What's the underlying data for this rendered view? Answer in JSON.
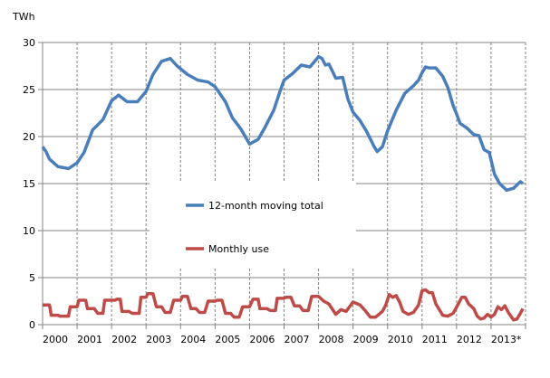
{
  "chart_data": {
    "type": "line",
    "ylabel": "TWh",
    "xlim": [
      2000,
      2014
    ],
    "ylim": [
      0,
      30
    ],
    "yticks": [
      0,
      5,
      10,
      15,
      20,
      25,
      30
    ],
    "xtick_labels": [
      "2000",
      "2001",
      "2002",
      "2003",
      "2004",
      "2005",
      "2006",
      "2007",
      "2008",
      "2009",
      "2010",
      "2011",
      "2012",
      "2013*"
    ],
    "grid": {
      "horizontal": "solid",
      "vertical": "dashed"
    },
    "legend_placement": "center-left",
    "series": [
      {
        "name": "12-month moving total",
        "color": "#4a7ebb",
        "points": [
          [
            2000.0,
            18.9
          ],
          [
            2000.1,
            18.4
          ],
          [
            2000.2,
            17.6
          ],
          [
            2000.45,
            16.8
          ],
          [
            2000.75,
            16.6
          ],
          [
            2001.0,
            17.2
          ],
          [
            2001.2,
            18.3
          ],
          [
            2001.45,
            20.7
          ],
          [
            2001.75,
            21.8
          ],
          [
            2002.0,
            23.8
          ],
          [
            2002.2,
            24.4
          ],
          [
            2002.45,
            23.7
          ],
          [
            2002.75,
            23.7
          ],
          [
            2003.0,
            24.8
          ],
          [
            2003.2,
            26.6
          ],
          [
            2003.45,
            28.0
          ],
          [
            2003.7,
            28.3
          ],
          [
            2003.9,
            27.5
          ],
          [
            2004.2,
            26.6
          ],
          [
            2004.5,
            26.0
          ],
          [
            2004.8,
            25.8
          ],
          [
            2005.0,
            25.3
          ],
          [
            2005.3,
            23.7
          ],
          [
            2005.5,
            22.0
          ],
          [
            2005.75,
            20.8
          ],
          [
            2006.0,
            19.2
          ],
          [
            2006.25,
            19.7
          ],
          [
            2006.45,
            21.0
          ],
          [
            2006.7,
            22.8
          ],
          [
            2006.9,
            25.0
          ],
          [
            2007.0,
            26.0
          ],
          [
            2007.25,
            26.7
          ],
          [
            2007.5,
            27.6
          ],
          [
            2007.75,
            27.4
          ],
          [
            2008.0,
            28.5
          ],
          [
            2008.1,
            28.3
          ],
          [
            2008.2,
            27.6
          ],
          [
            2008.3,
            27.7
          ],
          [
            2008.5,
            26.2
          ],
          [
            2008.7,
            26.3
          ],
          [
            2008.85,
            24.0
          ],
          [
            2009.0,
            22.6
          ],
          [
            2009.2,
            21.7
          ],
          [
            2009.4,
            20.5
          ],
          [
            2009.6,
            19.0
          ],
          [
            2009.7,
            18.4
          ],
          [
            2009.85,
            18.9
          ],
          [
            2010.0,
            20.6
          ],
          [
            2010.25,
            22.8
          ],
          [
            2010.5,
            24.6
          ],
          [
            2010.75,
            25.4
          ],
          [
            2010.9,
            26.0
          ],
          [
            2011.0,
            26.8
          ],
          [
            2011.1,
            27.4
          ],
          [
            2011.2,
            27.3
          ],
          [
            2011.4,
            27.3
          ],
          [
            2011.6,
            26.4
          ],
          [
            2011.75,
            25.2
          ],
          [
            2011.9,
            23.3
          ],
          [
            2012.0,
            22.4
          ],
          [
            2012.1,
            21.4
          ],
          [
            2012.3,
            20.9
          ],
          [
            2012.5,
            20.2
          ],
          [
            2012.65,
            20.1
          ],
          [
            2012.8,
            18.6
          ],
          [
            2012.95,
            18.3
          ],
          [
            2013.1,
            16.0
          ],
          [
            2013.25,
            15.0
          ],
          [
            2013.45,
            14.3
          ],
          [
            2013.65,
            14.5
          ],
          [
            2013.85,
            15.2
          ],
          [
            2013.92,
            15.0
          ]
        ]
      },
      {
        "name": "Monthly use",
        "color": "#be4b48",
        "points": [
          [
            2000.0,
            2.1
          ],
          [
            2000.2,
            2.1
          ],
          [
            2000.25,
            1.0
          ],
          [
            2000.45,
            1.0
          ],
          [
            2000.5,
            0.9
          ],
          [
            2000.75,
            0.9
          ],
          [
            2000.8,
            1.9
          ],
          [
            2001.0,
            1.9
          ],
          [
            2001.05,
            2.6
          ],
          [
            2001.25,
            2.6
          ],
          [
            2001.3,
            1.7
          ],
          [
            2001.5,
            1.7
          ],
          [
            2001.6,
            1.2
          ],
          [
            2001.75,
            1.2
          ],
          [
            2001.8,
            2.6
          ],
          [
            2002.1,
            2.6
          ],
          [
            2002.15,
            2.7
          ],
          [
            2002.25,
            2.7
          ],
          [
            2002.3,
            1.4
          ],
          [
            2002.5,
            1.4
          ],
          [
            2002.6,
            1.2
          ],
          [
            2002.8,
            1.2
          ],
          [
            2002.85,
            2.9
          ],
          [
            2003.0,
            2.9
          ],
          [
            2003.05,
            3.3
          ],
          [
            2003.2,
            3.3
          ],
          [
            2003.3,
            1.9
          ],
          [
            2003.45,
            1.9
          ],
          [
            2003.55,
            1.3
          ],
          [
            2003.7,
            1.3
          ],
          [
            2003.8,
            2.6
          ],
          [
            2004.0,
            2.6
          ],
          [
            2004.05,
            3.0
          ],
          [
            2004.2,
            3.0
          ],
          [
            2004.3,
            1.7
          ],
          [
            2004.45,
            1.7
          ],
          [
            2004.55,
            1.3
          ],
          [
            2004.7,
            1.3
          ],
          [
            2004.8,
            2.5
          ],
          [
            2005.0,
            2.5
          ],
          [
            2005.05,
            2.6
          ],
          [
            2005.2,
            2.6
          ],
          [
            2005.3,
            1.2
          ],
          [
            2005.45,
            1.2
          ],
          [
            2005.55,
            0.8
          ],
          [
            2005.7,
            0.8
          ],
          [
            2005.8,
            1.9
          ],
          [
            2006.0,
            1.9
          ],
          [
            2006.1,
            2.7
          ],
          [
            2006.25,
            2.7
          ],
          [
            2006.3,
            1.7
          ],
          [
            2006.5,
            1.7
          ],
          [
            2006.6,
            1.5
          ],
          [
            2006.75,
            1.5
          ],
          [
            2006.8,
            2.8
          ],
          [
            2007.0,
            2.8
          ],
          [
            2007.05,
            2.9
          ],
          [
            2007.2,
            2.9
          ],
          [
            2007.3,
            2.0
          ],
          [
            2007.45,
            2.0
          ],
          [
            2007.55,
            1.5
          ],
          [
            2007.7,
            1.5
          ],
          [
            2007.8,
            3.0
          ],
          [
            2008.0,
            3.0
          ],
          [
            2008.15,
            2.5
          ],
          [
            2008.3,
            2.2
          ],
          [
            2008.5,
            1.1
          ],
          [
            2008.65,
            1.6
          ],
          [
            2008.8,
            1.4
          ],
          [
            2009.0,
            2.4
          ],
          [
            2009.2,
            2.1
          ],
          [
            2009.35,
            1.5
          ],
          [
            2009.5,
            0.8
          ],
          [
            2009.65,
            0.8
          ],
          [
            2009.85,
            1.4
          ],
          [
            2009.95,
            2.1
          ],
          [
            2010.05,
            3.2
          ],
          [
            2010.15,
            2.9
          ],
          [
            2010.25,
            3.1
          ],
          [
            2010.35,
            2.4
          ],
          [
            2010.45,
            1.4
          ],
          [
            2010.6,
            1.1
          ],
          [
            2010.75,
            1.3
          ],
          [
            2010.9,
            2.1
          ],
          [
            2011.0,
            3.6
          ],
          [
            2011.1,
            3.7
          ],
          [
            2011.2,
            3.4
          ],
          [
            2011.3,
            3.4
          ],
          [
            2011.4,
            2.2
          ],
          [
            2011.5,
            1.6
          ],
          [
            2011.6,
            1.0
          ],
          [
            2011.75,
            0.9
          ],
          [
            2011.9,
            1.2
          ],
          [
            2012.05,
            2.2
          ],
          [
            2012.15,
            2.9
          ],
          [
            2012.25,
            2.9
          ],
          [
            2012.35,
            2.2
          ],
          [
            2012.5,
            1.7
          ],
          [
            2012.6,
            0.9
          ],
          [
            2012.7,
            0.6
          ],
          [
            2012.8,
            0.7
          ],
          [
            2012.9,
            1.1
          ],
          [
            2013.0,
            0.8
          ],
          [
            2013.1,
            1.1
          ],
          [
            2013.2,
            1.9
          ],
          [
            2013.3,
            1.6
          ],
          [
            2013.4,
            2.0
          ],
          [
            2013.5,
            1.3
          ],
          [
            2013.65,
            0.5
          ],
          [
            2013.75,
            0.6
          ],
          [
            2013.85,
            1.2
          ],
          [
            2013.92,
            1.7
          ]
        ]
      }
    ]
  }
}
